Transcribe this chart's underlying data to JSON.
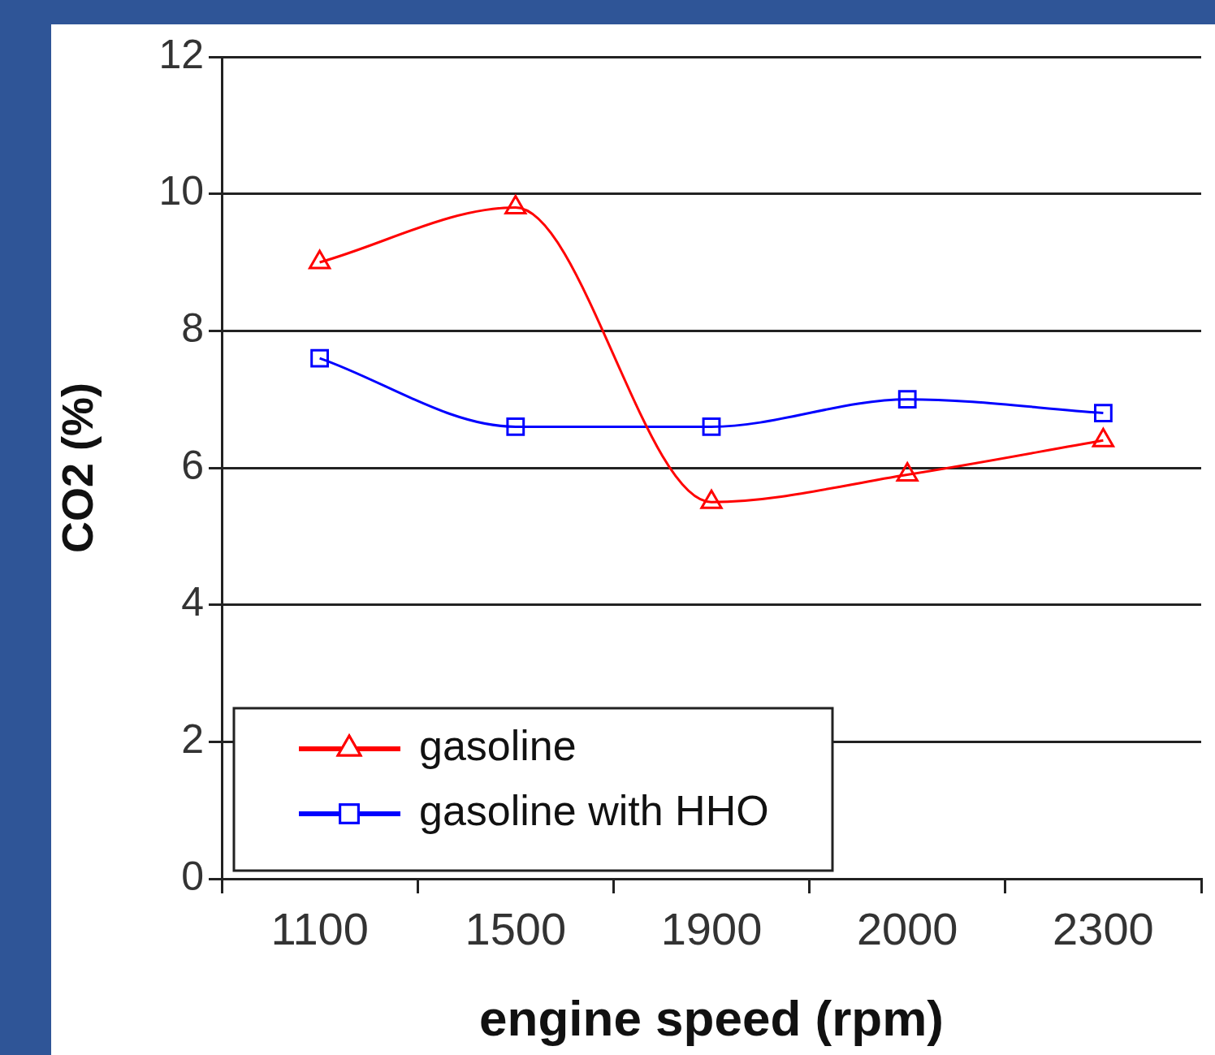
{
  "chart_data": {
    "type": "line",
    "xlabel": "engine speed (rpm)",
    "ylabel": "CO2 (%)",
    "categories": [
      "1100",
      "1500",
      "1900",
      "2000",
      "2300"
    ],
    "series": [
      {
        "name": "gasoline",
        "color": "#ff0000",
        "marker": "triangle",
        "values": [
          9.0,
          9.8,
          5.5,
          5.9,
          6.4
        ]
      },
      {
        "name": "gasoline with HHO",
        "color": "#0000ff",
        "marker": "square",
        "values": [
          7.6,
          6.6,
          6.6,
          7.0,
          6.8
        ]
      }
    ],
    "ylim": [
      0,
      12
    ],
    "yticks": [
      0,
      2,
      4,
      6,
      8,
      10,
      12
    ],
    "grid": "y",
    "legend": "bottom left"
  }
}
